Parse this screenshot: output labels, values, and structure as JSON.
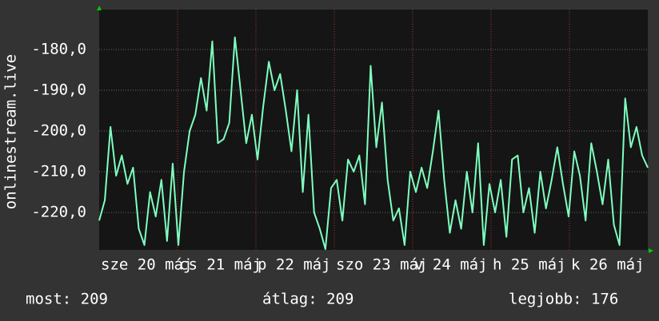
{
  "chart_data": {
    "type": "line",
    "y_label": "onlinestream.live",
    "x_labels": [
      "sze 20 máj",
      "cs 21 máj",
      "p 22 máj",
      "szo 23 máj",
      "v 24 máj",
      "h 25 máj",
      "k 26 máj"
    ],
    "series": [
      {
        "color": "#7fffbf",
        "values": [
          -222,
          -217,
          -199,
          -211,
          -206,
          -213,
          -209,
          -224,
          -228,
          -215,
          -221,
          -212,
          -227,
          -208,
          -228,
          -210,
          -200,
          -196,
          -187,
          -195,
          -178,
          -203,
          -202,
          -198,
          -177,
          -190,
          -203,
          -196,
          -207,
          -194,
          -183,
          -190,
          -186,
          -195,
          -205,
          -190,
          -215,
          -196,
          -220,
          -224,
          -229,
          -214,
          -212,
          -222,
          -207,
          -210,
          -206,
          -218,
          -184,
          -204,
          -193,
          -212,
          -222,
          -219,
          -228,
          -210,
          -215,
          -209,
          -214,
          -205,
          -195,
          -212,
          -225,
          -217,
          -224,
          -210,
          -220,
          -203,
          -228,
          -213,
          -220,
          -212,
          -226,
          -207,
          -206,
          -220,
          -214,
          -225,
          -210,
          -219,
          -212,
          -204,
          -213,
          -221,
          -205,
          -211,
          -222,
          -203,
          -210,
          -218,
          -207,
          -223,
          -228,
          -192,
          -204,
          -199,
          -206,
          -209
        ]
      }
    ],
    "ylim": [
      -229.2,
      -170.2
    ],
    "yticks": [
      {
        "value": -180,
        "label": "-180,0"
      },
      {
        "value": -190,
        "label": "-190,0"
      },
      {
        "value": -200,
        "label": "-200,0"
      },
      {
        "value": -210,
        "label": "-210,0"
      },
      {
        "value": -220,
        "label": "-220,0"
      }
    ],
    "grid": true,
    "stats": [
      "most: 209",
      "átlag: 209",
      "legjobb: 176"
    ]
  }
}
